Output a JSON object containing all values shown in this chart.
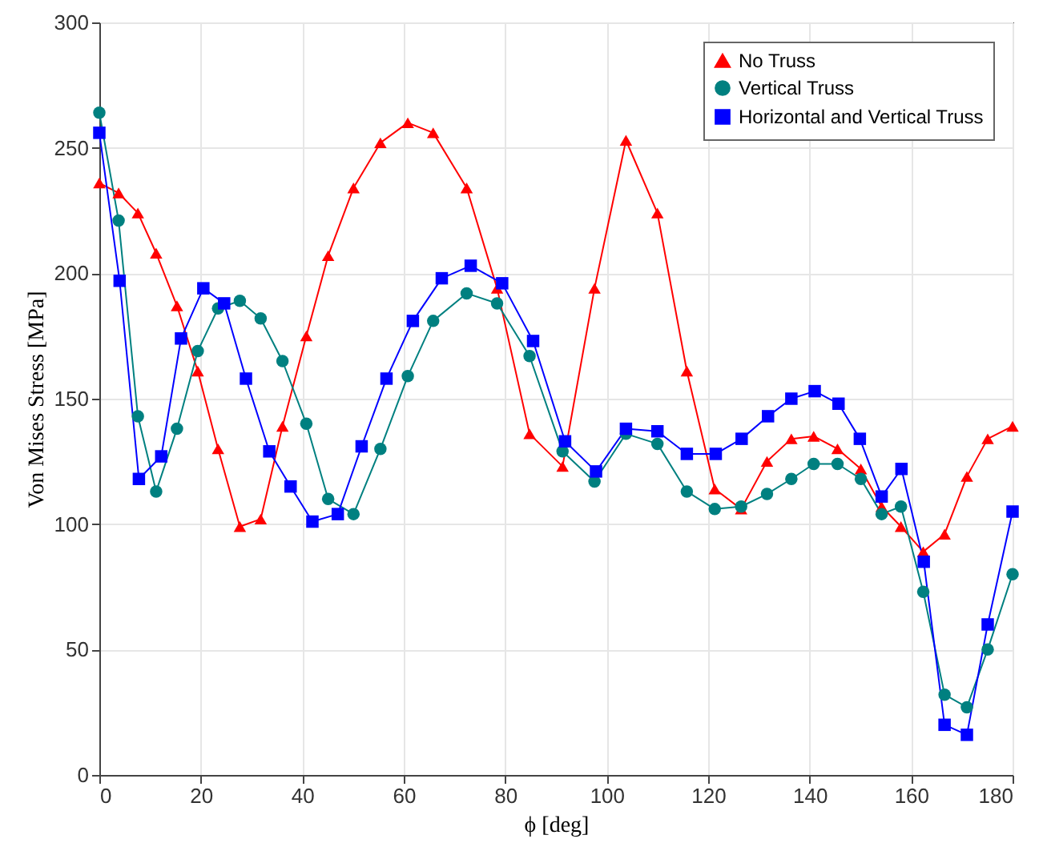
{
  "chart_data": {
    "type": "line",
    "xlabel": "ϕ [deg]",
    "ylabel": "Von Mises Stress [MPa]",
    "x": [
      0,
      3.8,
      7.6,
      11.2,
      15.3,
      19.4,
      23.4,
      27.7,
      31.8,
      36.1,
      40.8,
      45.1,
      50.1,
      55.4,
      60.8,
      65.8,
      72.4,
      78.4,
      84.8,
      91.3,
      97.6,
      103.8,
      110,
      115.8,
      121.3,
      126.5,
      131.6,
      136.4,
      140.8,
      145.5,
      150.1,
      154.2,
      158,
      162.4,
      166.6,
      171,
      175.1,
      180
    ],
    "series": [
      {
        "name": "No Truss",
        "color": "#ff0000",
        "marker": "triangle",
        "values": [
          236,
          232,
          224,
          208,
          187,
          161,
          130,
          99,
          102,
          139,
          175,
          207,
          234,
          252,
          260,
          256,
          234,
          194,
          136,
          123,
          194,
          253,
          224,
          161,
          114,
          106,
          125,
          134,
          135,
          130,
          122,
          107,
          99,
          89,
          96,
          119,
          134,
          139
        ]
      },
      {
        "name": "Vertical Truss",
        "color": "#008080",
        "marker": "circle",
        "values": [
          264,
          221,
          143,
          113,
          138,
          169,
          186,
          189,
          182,
          165,
          140,
          110,
          104,
          130,
          159,
          181,
          192,
          188,
          167,
          129,
          117,
          136,
          132,
          113,
          106,
          107,
          112,
          118,
          124,
          124,
          118,
          104,
          107,
          73,
          32,
          27,
          50,
          80
        ]
      },
      {
        "name": "Horizontal and Vertical Truss",
        "color": "#0000ff",
        "marker": "square",
        "x": [
          0,
          4,
          7.8,
          12.2,
          16.1,
          20.5,
          24.6,
          28.9,
          33.5,
          37.7,
          42,
          47,
          51.7,
          56.6,
          61.8,
          67.5,
          73.2,
          79.4,
          85.5,
          91.8,
          97.9,
          103.8,
          110,
          115.8,
          121.5,
          126.6,
          131.8,
          136.4,
          141,
          145.7,
          149.9,
          154.2,
          158.1,
          162.5,
          166.6,
          171,
          175.1,
          180
        ],
        "values": [
          256,
          197,
          118,
          127,
          174,
          194,
          188,
          158,
          129,
          115,
          101,
          104,
          131,
          158,
          181,
          198,
          203,
          196,
          173,
          133,
          121,
          138,
          137,
          128,
          128,
          134,
          143,
          150,
          153,
          148,
          134,
          111,
          122,
          85,
          20,
          16,
          60,
          105
        ]
      }
    ],
    "xlim": [
      0,
      180
    ],
    "xticks": [
      0,
      20,
      40,
      60,
      80,
      100,
      120,
      140,
      160,
      180
    ],
    "ylim": [
      0,
      300
    ],
    "yticks": [
      0,
      50,
      100,
      150,
      200,
      250,
      300
    ],
    "grid": true,
    "legend": "top right",
    "line_style": "solid"
  }
}
